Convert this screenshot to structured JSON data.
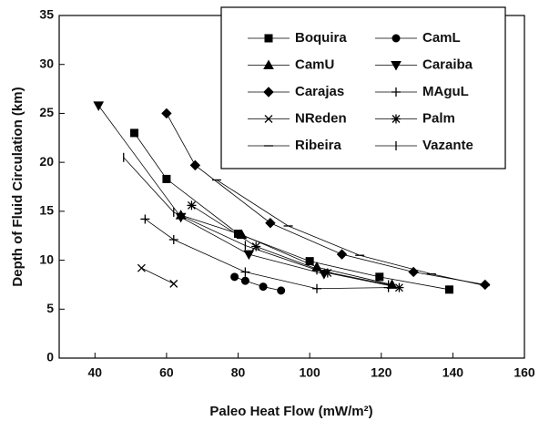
{
  "chart_data": {
    "type": "line",
    "xlabel": "Paleo Heat Flow (mW/m²)",
    "ylabel": "Depth of Fluid Circulation (km)",
    "xlim": [
      30,
      160
    ],
    "xticks": [
      40,
      60,
      80,
      100,
      120,
      140,
      160
    ],
    "ylim": [
      0,
      35
    ],
    "yticks": [
      0,
      5,
      10,
      15,
      20,
      25,
      30,
      35
    ],
    "legend": "upper right",
    "series": [
      {
        "name": "Boquira",
        "color": "#000000",
        "marker": "square",
        "x": [
          51,
          60,
          80,
          100,
          119.5,
          139
        ],
        "values": [
          23,
          18.3,
          12.7,
          9.9,
          8.3,
          7.0
        ]
      },
      {
        "name": "CamL",
        "color": "#000000",
        "marker": "circle",
        "x": [
          79,
          82,
          87,
          92
        ],
        "values": [
          8.3,
          7.9,
          7.3,
          6.9
        ]
      },
      {
        "name": "CamU",
        "color": "#000000",
        "marker": "triangle-up",
        "x": [
          64,
          81,
          102,
          123
        ],
        "values": [
          14.6,
          12.6,
          9.3,
          7.5
        ]
      },
      {
        "name": "Caraiba",
        "color": "#000000",
        "marker": "triangle-down",
        "x": [
          41,
          64,
          83,
          104
        ],
        "values": [
          25.8,
          14.4,
          10.6,
          8.6
        ]
      },
      {
        "name": "Carajas",
        "color": "#000000",
        "marker": "diamond",
        "x": [
          60,
          68,
          89,
          109,
          129,
          149
        ],
        "values": [
          25,
          19.7,
          13.8,
          10.6,
          8.8,
          7.5
        ]
      },
      {
        "name": "MAguL",
        "color": "#000000",
        "marker": "plus",
        "x": [
          54,
          62,
          82,
          102,
          122
        ],
        "values": [
          14.2,
          12.1,
          8.8,
          7.1,
          7.2
        ]
      },
      {
        "name": "NReden",
        "color": "#000000",
        "marker": "x",
        "x": [
          53,
          62
        ],
        "values": [
          9.2,
          7.6
        ]
      },
      {
        "name": "Palm",
        "color": "#000000",
        "marker": "star",
        "x": [
          67,
          85,
          105,
          125
        ],
        "values": [
          15.6,
          11.4,
          8.7,
          7.2
        ]
      },
      {
        "name": "Ribeira",
        "color": "#000000",
        "marker": "dash",
        "x": [
          74,
          94,
          114,
          134,
          149
        ],
        "values": [
          18.2,
          13.5,
          10.5,
          8.6,
          7.4
        ]
      },
      {
        "name": "Vazante",
        "color": "#000000",
        "marker": "vline",
        "x": [
          48,
          62,
          82,
          102,
          122
        ],
        "values": [
          20.5,
          14.9,
          11.5,
          9.0,
          7.5
        ]
      }
    ]
  }
}
